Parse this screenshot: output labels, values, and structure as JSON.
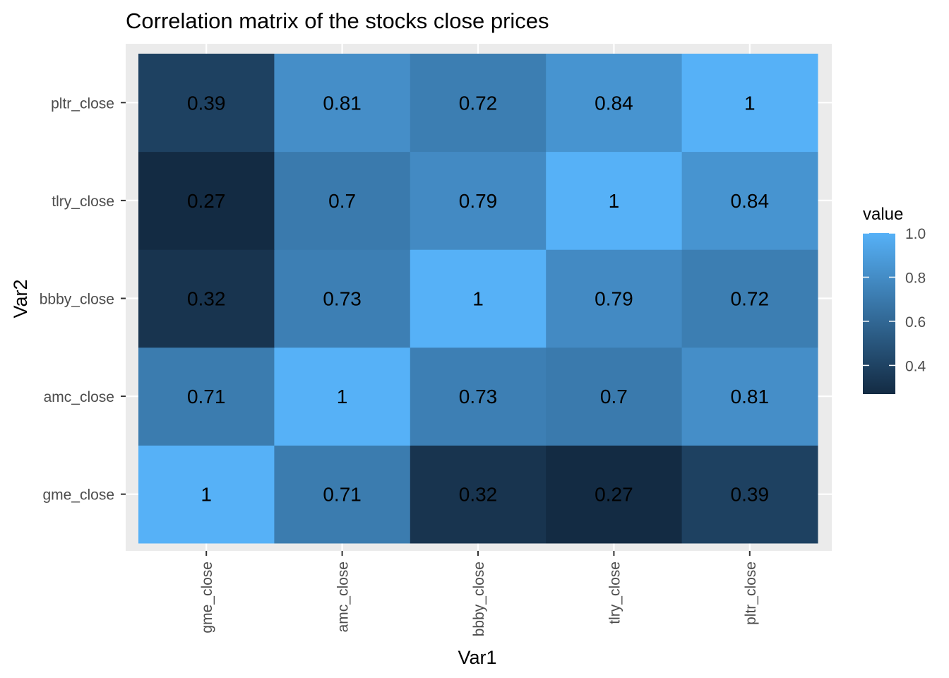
{
  "chart_data": {
    "type": "heatmap",
    "title": "Correlation matrix of the stocks close prices",
    "xlabel": "Var1",
    "ylabel": "Var2",
    "x_categories": [
      "gme_close",
      "amc_close",
      "bbby_close",
      "tlry_close",
      "pltr_close"
    ],
    "y_categories": [
      "gme_close",
      "amc_close",
      "bbby_close",
      "tlry_close",
      "pltr_close"
    ],
    "matrix": [
      [
        1,
        0.71,
        0.32,
        0.27,
        0.39
      ],
      [
        0.71,
        1,
        0.73,
        0.7,
        0.81
      ],
      [
        0.32,
        0.73,
        1,
        0.79,
        0.72
      ],
      [
        0.27,
        0.7,
        0.79,
        1,
        0.84
      ],
      [
        0.39,
        0.81,
        0.72,
        0.84,
        1
      ]
    ],
    "legend": {
      "title": "value",
      "breaks": [
        1.0,
        0.8,
        0.6,
        0.4
      ],
      "break_labels": [
        "1.0",
        "0.8",
        "0.6",
        "0.4"
      ],
      "range": [
        0.27,
        1.0
      ],
      "placement": "right"
    },
    "colors": {
      "low": "#132B43",
      "high": "#56B1F7",
      "panel": "#EBEBEB",
      "grid": "#FFFFFF",
      "cell_text": "#000000"
    },
    "grid": true
  }
}
